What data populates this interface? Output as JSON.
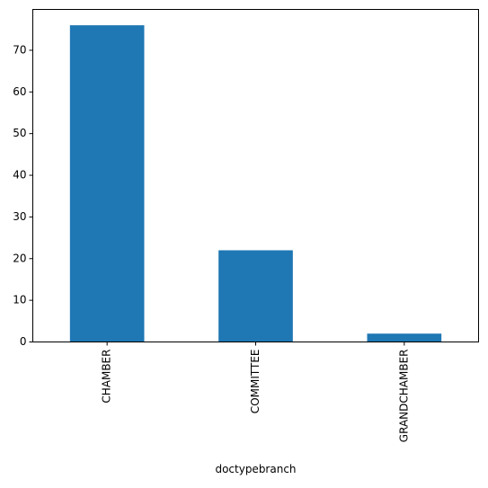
{
  "chart_data": {
    "type": "bar",
    "title": "",
    "xlabel": "doctypebranch",
    "ylabel": "",
    "categories": [
      "CHAMBER",
      "COMMITTEE",
      "GRANDCHAMBER"
    ],
    "values": [
      76,
      22,
      2
    ],
    "ylim": [
      0,
      79.8
    ],
    "yticks": [
      0,
      10,
      20,
      30,
      40,
      50,
      60,
      70
    ],
    "bar_color": "#1f77b4",
    "grid": false,
    "legend": "none",
    "xtick_rotation": "vertical"
  }
}
